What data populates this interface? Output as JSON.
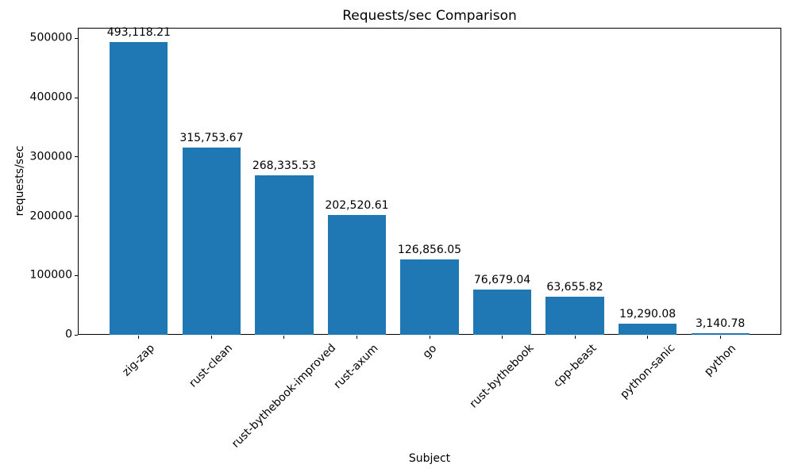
{
  "chart_data": {
    "type": "bar",
    "title": "Requests/sec Comparison",
    "xlabel": "Subject",
    "ylabel": "requests/sec",
    "categories": [
      "zig-zap",
      "rust-clean",
      "rust-bythebook-improved",
      "rust-axum",
      "go",
      "rust-bythebook",
      "cpp-beast",
      "python-sanic",
      "python"
    ],
    "values": [
      493118.21,
      315753.67,
      268335.53,
      202520.61,
      126856.05,
      76679.04,
      63655.82,
      19290.08,
      3140.78
    ],
    "value_labels": [
      "493,118.21",
      "315,753.67",
      "268,335.53",
      "202,520.61",
      "126,856.05",
      "76,679.04",
      "63,655.82",
      "19,290.08",
      "3,140.78"
    ],
    "yticks": [
      0,
      100000,
      200000,
      300000,
      400000,
      500000
    ],
    "ytick_labels": [
      "0",
      "100000",
      "200000",
      "300000",
      "400000",
      "500000"
    ],
    "ylim": [
      0,
      517774
    ],
    "bar_color": "#1f77b4",
    "grid": false,
    "legend_position": "none"
  }
}
